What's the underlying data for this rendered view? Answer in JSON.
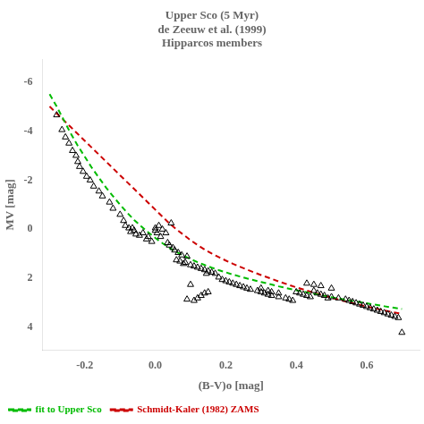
{
  "chart_data": {
    "type": "scatter",
    "title": [
      "Upper Sco (5 Myr)",
      "de Zeeuw et al. (1999)",
      "Hipparcos members"
    ],
    "xlabel": "(B-V)o [mag]",
    "ylabel": "MV [mag]",
    "xlim": [
      -0.32,
      0.75
    ],
    "ylim": [
      4.9,
      -6.9
    ],
    "xticks": [
      {
        "value": -0.2,
        "label": "-0.2"
      },
      {
        "value": 0,
        "label": "0.0"
      },
      {
        "value": 0.2,
        "label": "0.2"
      },
      {
        "value": 0.4,
        "label": "0.4"
      },
      {
        "value": 0.6,
        "label": "0.6"
      }
    ],
    "yticks": [
      -6,
      -4,
      -2,
      0,
      2,
      4
    ],
    "grid": false,
    "legend": "lower left",
    "series": [
      {
        "type": "scatter",
        "color": "black",
        "marker": "triangle",
        "x": [
          -0.28,
          -0.265,
          -0.255,
          -0.245,
          -0.235,
          -0.225,
          -0.22,
          -0.215,
          -0.205,
          -0.195,
          -0.185,
          -0.175,
          -0.16,
          -0.15,
          -0.13,
          -0.12,
          -0.1,
          -0.09,
          -0.085,
          -0.075,
          -0.07,
          -0.065,
          -0.06,
          -0.055,
          -0.045,
          -0.035,
          -0.025,
          -0.02,
          -0.01,
          0.0,
          0.0,
          0.005,
          0.01,
          0.015,
          0.02,
          0.03,
          0.035,
          0.04,
          0.045,
          0.05,
          0.055,
          0.06,
          0.065,
          0.07,
          0.075,
          0.08,
          0.085,
          0.09,
          0.1,
          0.11,
          0.12,
          0.13,
          0.14,
          0.145,
          0.15,
          0.16,
          0.17,
          0.18,
          0.19,
          0.2,
          0.21,
          0.22,
          0.09,
          0.11,
          0.12,
          0.13,
          0.14,
          0.15,
          0.1,
          0.23,
          0.24,
          0.25,
          0.26,
          0.27,
          0.29,
          0.3,
          0.31,
          0.32,
          0.33,
          0.35,
          0.37,
          0.38,
          0.39,
          0.3,
          0.32,
          0.33,
          0.35,
          0.4,
          0.41,
          0.42,
          0.43,
          0.44,
          0.45,
          0.46,
          0.47,
          0.48,
          0.49,
          0.5,
          0.52,
          0.54,
          0.55,
          0.56,
          0.57,
          0.43,
          0.45,
          0.47,
          0.5,
          0.58,
          0.59,
          0.6,
          0.61,
          0.62,
          0.63,
          0.64,
          0.65,
          0.66,
          0.67,
          0.68,
          0.69,
          0.7
        ],
        "values": [
          -4.65,
          -4.05,
          -3.75,
          -3.5,
          -3.2,
          -3.0,
          -2.75,
          -2.55,
          -2.35,
          -2.15,
          -2.0,
          -1.75,
          -1.55,
          -1.35,
          -1.1,
          -0.85,
          -0.6,
          -0.35,
          -0.15,
          -0.05,
          0.1,
          -0.05,
          0.05,
          0.2,
          0.25,
          0.15,
          0.4,
          0.3,
          0.5,
          -0.05,
          0.05,
          0.15,
          -0.15,
          0.3,
          0.0,
          0.15,
          0.55,
          0.65,
          -0.25,
          0.75,
          0.85,
          1.25,
          0.95,
          1.3,
          1.05,
          1.4,
          1.35,
          1.1,
          1.45,
          1.5,
          1.55,
          1.6,
          1.65,
          1.8,
          1.7,
          1.75,
          1.8,
          1.95,
          2.05,
          2.1,
          2.15,
          2.2,
          2.85,
          2.9,
          2.8,
          2.7,
          2.6,
          2.55,
          2.25,
          2.25,
          2.3,
          2.35,
          2.4,
          2.45,
          2.5,
          2.55,
          2.6,
          2.65,
          2.7,
          2.75,
          2.8,
          2.85,
          2.9,
          2.4,
          2.5,
          2.55,
          2.6,
          2.55,
          2.6,
          2.65,
          2.7,
          2.75,
          2.5,
          2.6,
          2.65,
          2.7,
          2.8,
          2.75,
          2.8,
          2.85,
          2.9,
          2.95,
          3.0,
          2.2,
          2.25,
          2.3,
          2.4,
          3.05,
          3.1,
          3.15,
          3.2,
          3.25,
          3.3,
          3.35,
          3.4,
          3.45,
          3.5,
          3.55,
          3.6,
          4.2
        ]
      },
      {
        "name": "fit to Upper Sco",
        "type": "line",
        "color": "#00bb00",
        "line_style": "dashed",
        "x": [
          -0.3,
          -0.28,
          -0.26,
          -0.24,
          -0.22,
          -0.2,
          -0.18,
          -0.16,
          -0.14,
          -0.12,
          -0.1,
          -0.08,
          -0.06,
          -0.04,
          -0.02,
          0.0,
          0.02,
          0.04,
          0.06,
          0.08,
          0.1,
          0.12,
          0.14,
          0.16,
          0.18,
          0.2,
          0.22,
          0.24,
          0.26,
          0.28,
          0.3,
          0.35,
          0.4,
          0.45,
          0.5,
          0.55,
          0.6,
          0.65,
          0.7
        ],
        "values": [
          -5.5,
          -5.0,
          -4.45,
          -3.9,
          -3.4,
          -2.95,
          -2.5,
          -2.1,
          -1.7,
          -1.35,
          -1.0,
          -0.68,
          -0.38,
          -0.12,
          0.12,
          0.35,
          0.56,
          0.75,
          0.92,
          1.07,
          1.21,
          1.34,
          1.45,
          1.56,
          1.66,
          1.75,
          1.84,
          1.92,
          2.0,
          2.07,
          2.14,
          2.32,
          2.48,
          2.62,
          2.76,
          2.89,
          3.01,
          3.13,
          3.24
        ]
      },
      {
        "name": "Schmidt-Kaler (1982) ZAMS",
        "type": "line",
        "color": "#cc0000",
        "line_style": "dashed",
        "x": [
          -0.3,
          -0.28,
          -0.26,
          -0.24,
          -0.22,
          -0.2,
          -0.18,
          -0.16,
          -0.14,
          -0.12,
          -0.1,
          -0.08,
          -0.06,
          -0.04,
          -0.02,
          0.0,
          0.02,
          0.04,
          0.06,
          0.08,
          0.1,
          0.12,
          0.14,
          0.16,
          0.18,
          0.2,
          0.22,
          0.24,
          0.26,
          0.28,
          0.3,
          0.35,
          0.4,
          0.45,
          0.5,
          0.55,
          0.6,
          0.65,
          0.7
        ],
        "values": [
          -5.0,
          -4.72,
          -4.44,
          -4.16,
          -3.88,
          -3.6,
          -3.32,
          -3.04,
          -2.76,
          -2.48,
          -2.2,
          -1.92,
          -1.64,
          -1.36,
          -1.08,
          -0.8,
          -0.52,
          -0.24,
          0.0,
          0.22,
          0.44,
          0.64,
          0.82,
          0.98,
          1.13,
          1.27,
          1.4,
          1.52,
          1.64,
          1.75,
          1.86,
          2.12,
          2.36,
          2.58,
          2.78,
          2.97,
          3.14,
          3.3,
          3.44
        ]
      }
    ]
  }
}
